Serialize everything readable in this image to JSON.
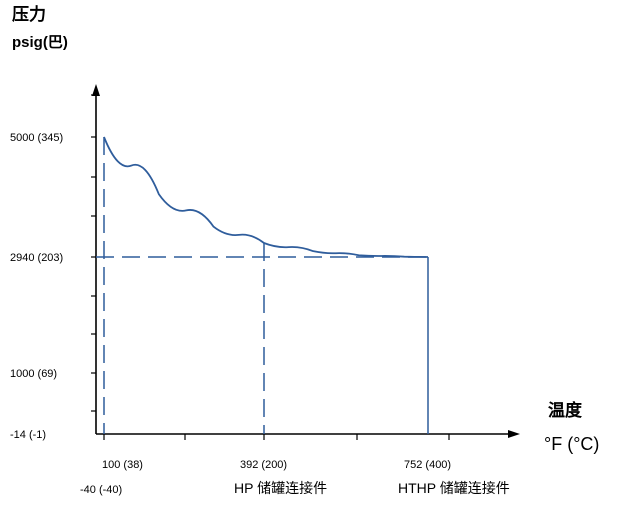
{
  "chart_data": {
    "type": "line",
    "title": "",
    "ylabel_line1": "压力",
    "ylabel_line2": "psig(巴)",
    "xlabel_line1": "温度",
    "xlabel_line2": "°F (°C)",
    "y_tick_labels": [
      {
        "value": 5000,
        "label": "5000 (345)"
      },
      {
        "value": 2940,
        "label": "2940 (203)"
      },
      {
        "value": 1000,
        "label": "1000 (69)"
      },
      {
        "value": -14,
        "label": "-14 (-1)"
      }
    ],
    "x_tick_labels": [
      {
        "value": 100,
        "label": "100 (38)",
        "sublabel": "-40 (-40)"
      },
      {
        "value": 392,
        "label": "392 (200)",
        "sublabel": "HP 储罐连接件"
      },
      {
        "value": 752,
        "label": "752 (400)",
        "sublabel": "HTHP 储罐连接件"
      }
    ],
    "xlim": [
      -40,
      800
    ],
    "ylim": [
      -14,
      5700
    ],
    "series": [
      {
        "x": [
          -40,
          100,
          200,
          300,
          392,
          500,
          600,
          700,
          752
        ],
        "y": [
          5000,
          5000,
          4020,
          3460,
          3180,
          3040,
          2970,
          2945,
          2940
        ]
      }
    ],
    "reference_lines": {
      "horizontal": [
        2940
      ],
      "vertical_dashed": [
        -40,
        392
      ],
      "vertical_solid": [
        752
      ]
    },
    "colors": {
      "curve": "#2f5d9c",
      "dashed": "#2f5d9c",
      "axis": "#000000"
    }
  }
}
